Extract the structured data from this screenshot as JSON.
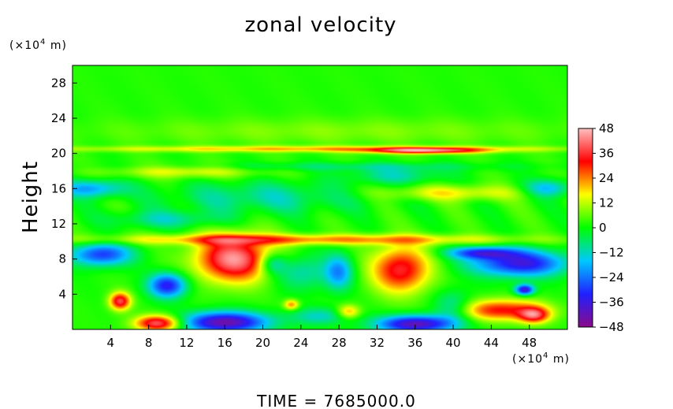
{
  "chart_data": {
    "type": "heatmap",
    "title": "zonal velocity",
    "xlabel": "",
    "ylabel": "Height",
    "x_unit": {
      "base": "(×10",
      "exp": "4",
      "tail": " m)"
    },
    "y_unit": {
      "base": "(×10",
      "exp": "4",
      "tail": " m)"
    },
    "xlim": [
      0,
      52
    ],
    "ylim": [
      0,
      30
    ],
    "x_ticks": [
      4,
      8,
      12,
      16,
      20,
      24,
      28,
      32,
      36,
      40,
      44,
      48
    ],
    "y_ticks": [
      4,
      8,
      12,
      16,
      20,
      24,
      28
    ],
    "colorbar": {
      "range": [
        -48,
        48
      ],
      "ticks": [
        48,
        36,
        24,
        12,
        0,
        -12,
        -24,
        -36,
        -48
      ],
      "colors": [
        "#8b0a8b",
        "#2020ff",
        "#00c8ff",
        "#00ff00",
        "#ffff00",
        "#ff0000",
        "#ffc0c0"
      ]
    },
    "baseline": 2,
    "features": [
      {
        "x": 17,
        "y": 8.0,
        "rx": 4.0,
        "ry": 2.6,
        "v": 42
      },
      {
        "x": 16,
        "y": 0.8,
        "rx": 4.5,
        "ry": 1.2,
        "v": -46
      },
      {
        "x": 36,
        "y": 0.6,
        "rx": 4.0,
        "ry": 1.0,
        "v": -44
      },
      {
        "x": 9,
        "y": 0.7,
        "rx": 2.4,
        "ry": 0.9,
        "v": 40
      },
      {
        "x": 34.5,
        "y": 6.8,
        "rx": 3.0,
        "ry": 2.6,
        "v": 34
      },
      {
        "x": 5,
        "y": 3.2,
        "rx": 1.1,
        "ry": 1.0,
        "v": 36
      },
      {
        "x": 45,
        "y": 2.2,
        "rx": 4.5,
        "ry": 1.2,
        "v": 30
      },
      {
        "x": 48.5,
        "y": 1.6,
        "rx": 1.6,
        "ry": 0.9,
        "v": 30
      },
      {
        "x": 10,
        "y": 5.0,
        "rx": 2.0,
        "ry": 1.4,
        "v": -36
      },
      {
        "x": 3,
        "y": 8.5,
        "rx": 3.2,
        "ry": 1.3,
        "v": -32
      },
      {
        "x": 47,
        "y": 7.5,
        "rx": 5.0,
        "ry": 1.5,
        "v": -38
      },
      {
        "x": 43,
        "y": 8.7,
        "rx": 3.5,
        "ry": 0.7,
        "v": -30
      },
      {
        "x": 28,
        "y": 6.5,
        "rx": 1.5,
        "ry": 2.0,
        "v": -22
      },
      {
        "x": 26,
        "y": 1.5,
        "rx": 3.0,
        "ry": 1.0,
        "v": -14
      },
      {
        "x": 29,
        "y": 2.0,
        "rx": 1.2,
        "ry": 0.8,
        "v": 20
      },
      {
        "x": 23,
        "y": 2.8,
        "rx": 0.8,
        "ry": 0.6,
        "v": 22
      },
      {
        "x": 24,
        "y": 6.5,
        "rx": 3.0,
        "ry": 2.0,
        "v": -14
      },
      {
        "x": 21,
        "y": 7.5,
        "rx": 1.4,
        "ry": 1.2,
        "v": -18
      },
      {
        "x": 40,
        "y": 2.5,
        "rx": 2.0,
        "ry": 1.8,
        "v": -16
      },
      {
        "x": 47.5,
        "y": 4.5,
        "rx": 1.0,
        "ry": 0.6,
        "v": -40
      },
      {
        "x": 2,
        "y": 16.0,
        "rx": 3.5,
        "ry": 1.0,
        "v": -22
      },
      {
        "x": 50,
        "y": 16.0,
        "rx": 2.5,
        "ry": 1.0,
        "v": -20
      },
      {
        "x": 20,
        "y": 15.0,
        "rx": 10.0,
        "ry": 1.8,
        "v": -12
      },
      {
        "x": 34,
        "y": 17.5,
        "rx": 5.0,
        "ry": 1.0,
        "v": -12
      },
      {
        "x": 10,
        "y": 12.5,
        "rx": 6.0,
        "ry": 1.0,
        "v": -12
      },
      {
        "x": 12,
        "y": 18.0,
        "rx": 8.0,
        "ry": 0.8,
        "v": 14
      },
      {
        "x": 40,
        "y": 15.5,
        "rx": 8.0,
        "ry": 0.9,
        "v": 14
      },
      {
        "x": 26,
        "y": 18.5,
        "rx": 20.0,
        "ry": 0.5,
        "v": -8
      },
      {
        "x": 24,
        "y": 10.2,
        "rx": 22.0,
        "ry": 0.6,
        "v": 22
      },
      {
        "x": 26,
        "y": 20.5,
        "rx": 26.0,
        "ry": 0.35,
        "v": 18
      },
      {
        "x": 37,
        "y": 20.3,
        "rx": 6.0,
        "ry": 0.35,
        "v": 34
      },
      {
        "x": 28,
        "y": 22.5,
        "rx": 26.0,
        "ry": 1.5,
        "v": 6
      }
    ],
    "footer": {
      "label": "TIME",
      "value": "7685000.0"
    }
  }
}
